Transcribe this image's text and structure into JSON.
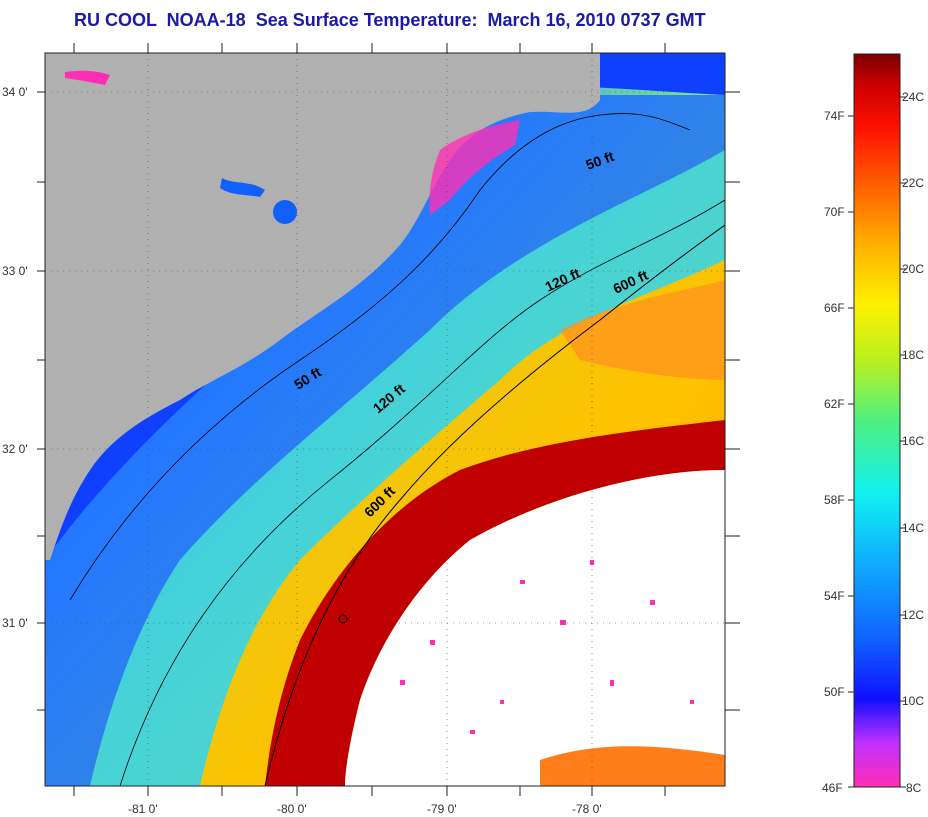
{
  "title": "RU COOL  NOAA-18  Sea Surface Temperature:  March 16, 2010 0737 GMT",
  "map": {
    "lat_labels": [
      "34 0'",
      "33 0'",
      "32 0'",
      "31 0'"
    ],
    "lon_labels": [
      "-81 0'",
      "-80 0'",
      "-79 0'",
      "-78 0'"
    ],
    "isobaths": [
      {
        "label": "50 ft"
      },
      {
        "label": "50 ft"
      },
      {
        "label": "120 ft"
      },
      {
        "label": "120 ft"
      },
      {
        "label": "600 ft"
      },
      {
        "label": "600 ft"
      }
    ],
    "colors": {
      "land": "#b0b0b0",
      "cloud": "#ffffff",
      "cold": "#1a3cff",
      "warm": "#b00000"
    }
  },
  "colorbar": {
    "fahrenheit_labels": [
      "74F",
      "70F",
      "66F",
      "62F",
      "58F",
      "54F",
      "50F",
      "46F"
    ],
    "celsius_labels": [
      "24C",
      "22C",
      "20C",
      "18C",
      "16C",
      "14C",
      "12C",
      "10C",
      "8C"
    ],
    "scale_colors": [
      "#ff2fb4",
      "#c030ff",
      "#1010ff",
      "#1060ff",
      "#10a8ff",
      "#10f0f0",
      "#50f080",
      "#b8f020",
      "#fff000",
      "#ffb000",
      "#ff6000",
      "#ff1000",
      "#c80000",
      "#7a0000"
    ]
  }
}
